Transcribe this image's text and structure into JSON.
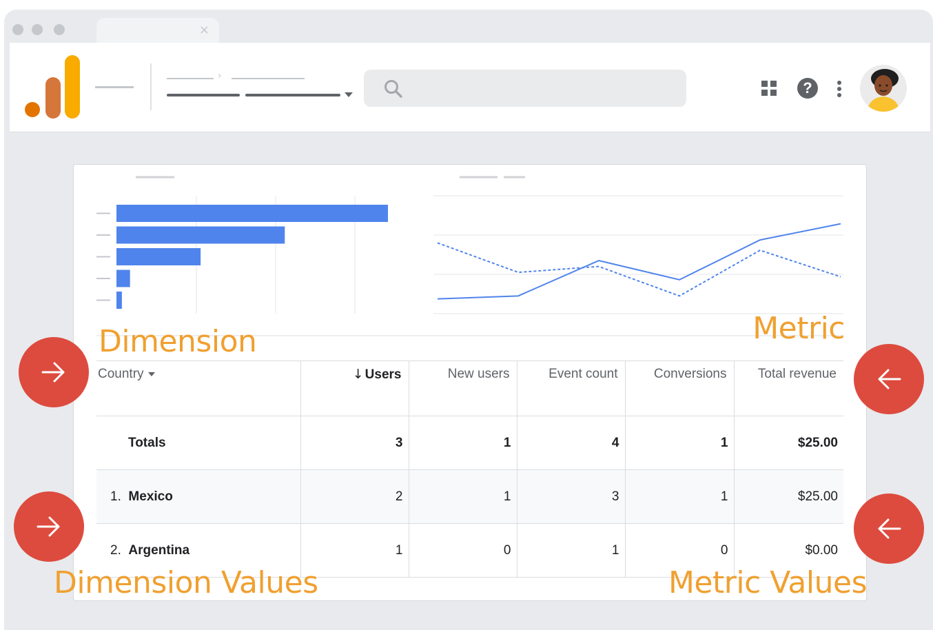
{
  "window": {
    "tab_close_glyph": "×"
  },
  "header": {
    "search_placeholder": "",
    "icons": [
      "analytics-logo",
      "search-icon",
      "apps-icon",
      "help-icon",
      "more-vert-icon",
      "avatar"
    ],
    "help_glyph": "?"
  },
  "chart_data": [
    {
      "type": "bar",
      "orientation": "horizontal",
      "title": "",
      "categories": [
        "",
        "",
        "",
        "",
        ""
      ],
      "values": [
        100,
        62,
        31,
        5,
        2
      ],
      "xlim": [
        0,
        100
      ],
      "color": "#4f84ec",
      "grid": true
    },
    {
      "type": "line",
      "title": "",
      "x": [
        1,
        2,
        3,
        4,
        5,
        6
      ],
      "series": [
        {
          "values": [
            1.0,
            1.2,
            3.6,
            2.3,
            5.0,
            6.1
          ],
          "style": "solid"
        },
        {
          "values": [
            4.8,
            2.8,
            3.2,
            1.2,
            4.3,
            2.5
          ],
          "style": "dashed"
        }
      ],
      "values_by_x": null,
      "ylim": [
        0,
        8
      ],
      "color": "#4f84ec",
      "grid": true
    }
  ],
  "table": {
    "columns": [
      "Country",
      "Users",
      "New users",
      "Event count",
      "Conversions",
      "Total revenue"
    ],
    "sorted_column": "Users",
    "sort_glyph": "↓",
    "totals": {
      "label": "Totals",
      "values": [
        "3",
        "1",
        "4",
        "1",
        "$25.00"
      ]
    },
    "rows": [
      {
        "rank": "1.",
        "country": "Mexico",
        "values": [
          "2",
          "1",
          "3",
          "1",
          "$25.00"
        ]
      },
      {
        "rank": "2.",
        "country": "Argentina",
        "values": [
          "1",
          "0",
          "1",
          "0",
          "$0.00"
        ]
      }
    ]
  },
  "annotations": {
    "dimension": "Dimension",
    "metric": "Metric",
    "dimension_values": "Dimension Values",
    "metric_values": "Metric Values"
  },
  "colors": {
    "annotation": "#f0a030",
    "bubble": "#dd4b3e",
    "chart_blue": "#4f84ec",
    "logo_orange_dark": "#e37400",
    "logo_orange_mid": "#d5763a",
    "logo_yellow": "#f9ab00"
  }
}
